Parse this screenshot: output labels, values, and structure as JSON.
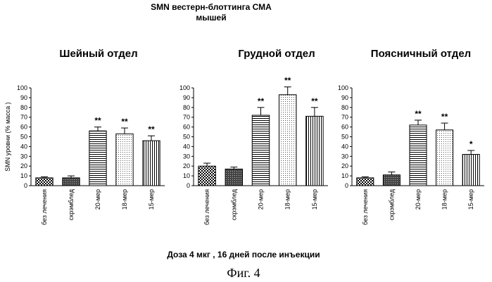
{
  "figure": {
    "title_line1": "SMN вестерн-блоттинга СМА",
    "title_line2": "мышей",
    "x_caption": "Доза 4 мкг , 16 дней после инъекции",
    "fig_label": "Фиг. 4"
  },
  "chart_data": [
    {
      "type": "bar",
      "title": "Шейный отдел",
      "ylabel": "SMN уровни (% масса )",
      "ylim": [
        0,
        100
      ],
      "yticks": [
        "0",
        "10",
        "20",
        "30",
        "40",
        "50",
        "60",
        "70",
        "80",
        "90",
        "100"
      ],
      "categories": [
        "без лечения",
        "скрэмблед",
        "20-мер",
        "18-мер",
        "15-мер"
      ],
      "values": [
        8,
        8,
        56,
        53,
        46
      ],
      "errors": [
        1,
        2,
        4,
        6,
        5
      ],
      "significance": [
        "",
        "",
        "**",
        "**",
        "**"
      ],
      "grid": false
    },
    {
      "type": "bar",
      "title": "Грудной отдел",
      "ylabel": "",
      "ylim": [
        0,
        100
      ],
      "yticks": [
        "0",
        "10",
        "20",
        "30",
        "40",
        "50",
        "60",
        "70",
        "80",
        "90",
        "100"
      ],
      "categories": [
        "без лечения",
        "скрэмблед",
        "20-мер",
        "18-мер",
        "15-мер"
      ],
      "values": [
        20,
        17,
        72,
        93,
        71
      ],
      "errors": [
        3,
        2,
        8,
        8,
        9
      ],
      "significance": [
        "",
        "",
        "**",
        "**",
        "**"
      ],
      "grid": false
    },
    {
      "type": "bar",
      "title": "Поясничный отдел",
      "ylabel": "",
      "ylim": [
        0,
        100
      ],
      "yticks": [
        "0",
        "10",
        "20",
        "30",
        "40",
        "50",
        "60",
        "70",
        "80",
        "90",
        "100"
      ],
      "categories": [
        "без лечения",
        "скрэмблед",
        "20-мер",
        "18-мер",
        "15-мер"
      ],
      "values": [
        8,
        11,
        62,
        57,
        32
      ],
      "errors": [
        1,
        3,
        5,
        7,
        4
      ],
      "significance": [
        "",
        "",
        "**",
        "**",
        "*"
      ],
      "grid": false
    }
  ]
}
